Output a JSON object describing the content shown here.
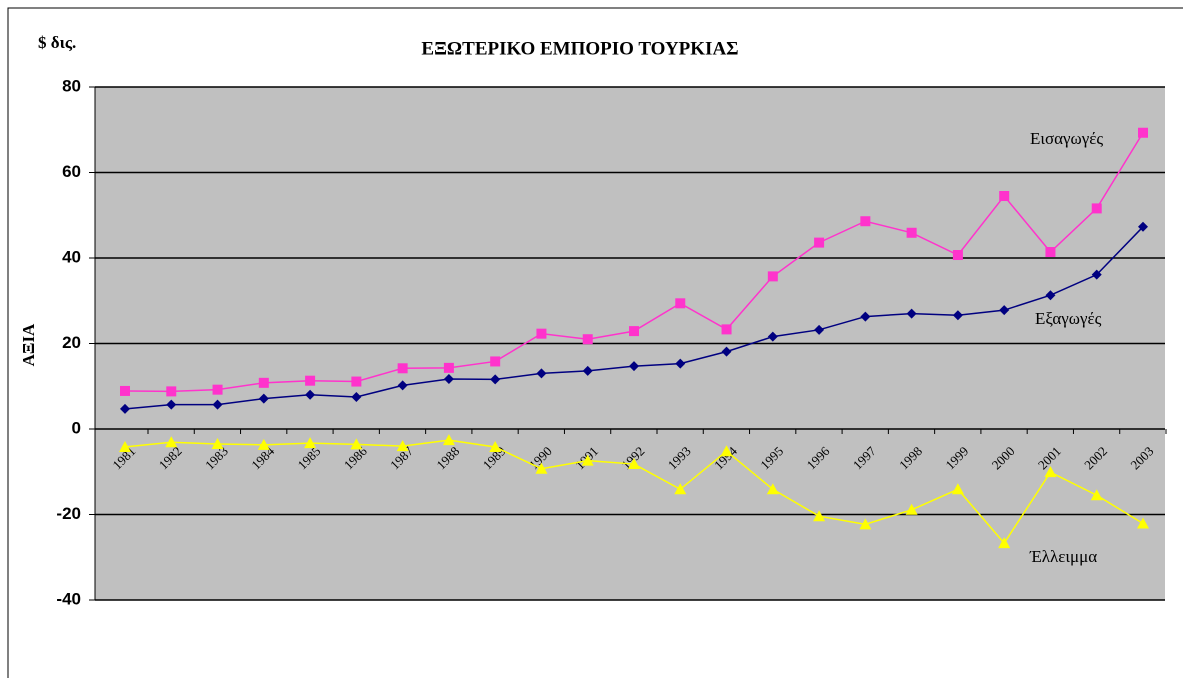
{
  "chart_data": {
    "type": "line",
    "title": "ΕΞΩΤΕΡΙΚΟ ΕΜΠΟΡΙΟ ΤΟΥΡΚΙΑΣ",
    "y_unit": "$ δις.",
    "y_label": "ΑΞΙΑ",
    "categories": [
      "1981",
      "1982",
      "1983",
      "1984",
      "1985",
      "1986",
      "1987",
      "1988",
      "1989",
      "1990",
      "1991",
      "1992",
      "1993",
      "1994",
      "1995",
      "1996",
      "1997",
      "1998",
      "1999",
      "2000",
      "2001",
      "2002",
      "2003"
    ],
    "series": [
      {
        "name": "Εισαγωγές",
        "color": "#ff33cc",
        "marker": "square",
        "values": [
          8.9,
          8.8,
          9.2,
          10.8,
          11.3,
          11.1,
          14.2,
          14.3,
          15.8,
          22.3,
          21.0,
          22.9,
          29.4,
          23.3,
          35.7,
          43.6,
          48.6,
          45.9,
          40.7,
          54.5,
          41.4,
          51.6,
          69.3
        ]
      },
      {
        "name": "Εξαγωγές",
        "color": "#000080",
        "marker": "diamond",
        "values": [
          4.7,
          5.7,
          5.7,
          7.1,
          8.0,
          7.5,
          10.2,
          11.7,
          11.6,
          13.0,
          13.6,
          14.7,
          15.3,
          18.1,
          21.6,
          23.2,
          26.3,
          27.0,
          26.6,
          27.8,
          31.3,
          36.1,
          47.3
        ]
      },
      {
        "name": "Έλλειμμα",
        "color": "#ffff00",
        "marker": "triangle",
        "values": [
          -4.2,
          -3.1,
          -3.5,
          -3.7,
          -3.3,
          -3.6,
          -4.0,
          -2.6,
          -4.2,
          -9.3,
          -7.4,
          -8.2,
          -14.1,
          -5.2,
          -14.1,
          -20.4,
          -22.3,
          -18.9,
          -14.1,
          -26.7,
          -10.1,
          -15.5,
          -22.1
        ]
      }
    ],
    "ylim": [
      -40,
      80
    ],
    "yticks": [
      -40,
      -20,
      0,
      20,
      40,
      60,
      80
    ],
    "grid": true
  }
}
